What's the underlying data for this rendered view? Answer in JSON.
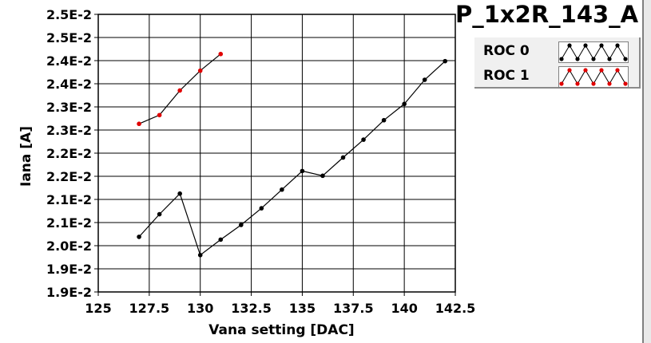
{
  "colors": {
    "roc0": "#000000",
    "roc1": "#e00000",
    "grid": "#000000"
  },
  "chart_data": {
    "type": "line",
    "title": "P_1x2R_143_A",
    "xlabel": "Vana setting [DAC]",
    "ylabel": "Iana [A]",
    "xlim": [
      125,
      142.5
    ],
    "ylim": [
      0.0185,
      0.0255
    ],
    "x_ticks": [
      "125",
      "127.5",
      "130",
      "132.5",
      "135",
      "137.5",
      "140",
      "142.5"
    ],
    "y_ticks": [
      "1.9E-2",
      "1.9E-2",
      "2.0E-2",
      "2.1E-2",
      "2.1E-2",
      "2.2E-2",
      "2.2E-2",
      "2.3E-2",
      "2.3E-2",
      "2.4E-2",
      "2.4E-2",
      "2.5E-2",
      "2.5E-2"
    ],
    "grid": true,
    "legend_position": "top-right",
    "series": [
      {
        "name": "ROC 0",
        "x": [
          127,
          128,
          129,
          130,
          131,
          132,
          133,
          134,
          135,
          136,
          137,
          138,
          139,
          140,
          141,
          142
        ],
        "y": [
          0.01989,
          0.02046,
          0.02098,
          0.01943,
          0.01982,
          0.02019,
          0.02061,
          0.02108,
          0.02155,
          0.02143,
          0.02189,
          0.02234,
          0.02283,
          0.02324,
          0.02385,
          0.02432
        ]
      },
      {
        "name": "ROC 1",
        "x": [
          127,
          128,
          129,
          130,
          131
        ],
        "y": [
          0.02274,
          0.02296,
          0.02358,
          0.02408,
          0.0245
        ]
      }
    ]
  }
}
